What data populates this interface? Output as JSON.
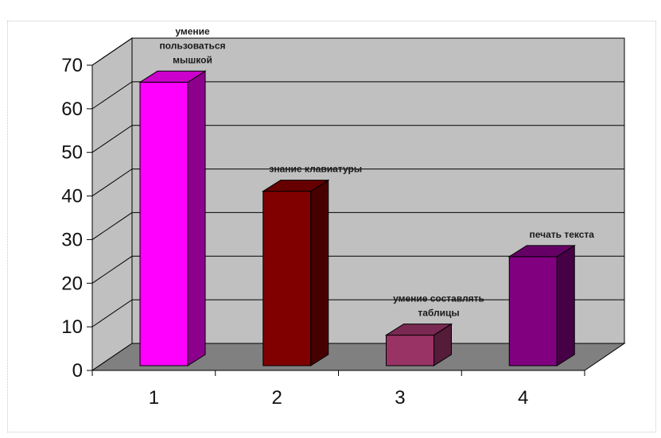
{
  "chart_data": {
    "type": "bar",
    "categories": [
      "1",
      "2",
      "3",
      "4"
    ],
    "values": [
      65,
      40,
      7,
      25
    ],
    "annotations": [
      [
        "умение",
        "пользоваться",
        "мышкой"
      ],
      [
        "знание клавиатуры"
      ],
      [
        "умение составлять",
        "таблицы"
      ],
      [
        "печать текста"
      ]
    ],
    "bar_colors": [
      "#ff00ff",
      "#800000",
      "#993366",
      "#800080"
    ],
    "wall_color": "#c0c0c0",
    "floor_color": "#808080",
    "ylim": [
      0,
      70
    ],
    "yticks": [
      0,
      10,
      20,
      30,
      40,
      50,
      60,
      70
    ],
    "grid": true,
    "three_d": true,
    "title": "",
    "xlabel": "",
    "ylabel": ""
  }
}
